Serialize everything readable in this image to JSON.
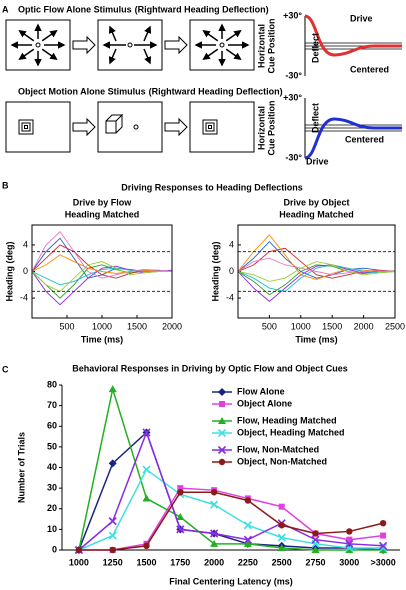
{
  "panels": {
    "a": {
      "label": "A",
      "top_label": "+30°",
      "bottom_label": "-30°",
      "rows": [
        {
          "title": "Optic Flow Alone Stimulus",
          "subtitle": "(Rightward Heading Deflection)",
          "axis_label": [
            "Horizontal",
            "Cue Position"
          ],
          "drive": "Drive",
          "deflect": "Deflect",
          "centered": "Centered"
        },
        {
          "title": "Object Motion Alone Stimulus",
          "subtitle": "(Rightward Heading Deflection)",
          "axis_label": [
            "Horizontal",
            "Cue Position"
          ],
          "drive": "Drive",
          "deflect": "Deflect",
          "centered": "Centered"
        }
      ]
    },
    "b": {
      "label": "B",
      "title": "Driving Responses to Heading Deflections"
    },
    "c": {
      "label": "C"
    }
  },
  "chart_data": [
    {
      "type": "line",
      "title": "Drive by Flow",
      "subtitle": "Heading Matched",
      "x_label": "Time (ms)",
      "y_label": "Heading (deg)",
      "x": [
        0,
        200,
        400,
        600,
        800,
        1000,
        1200,
        1400,
        1600,
        1800,
        2000
      ],
      "xlim": [
        0,
        2000
      ],
      "xticks": [
        500,
        1000,
        1500,
        2000
      ],
      "ylim": [
        -7,
        7
      ],
      "yticks": [
        -4,
        0,
        4
      ],
      "reference_lines": [
        3,
        -3
      ],
      "series": [
        {
          "color": "#1f5fd0",
          "values": [
            0,
            3,
            5,
            2,
            -1,
            -0.5,
            0.5,
            0.3,
            0,
            0.2,
            0
          ]
        },
        {
          "color": "#2ca02c",
          "values": [
            0,
            -2,
            -4,
            -2,
            0.5,
            1,
            0.3,
            -0.2,
            0,
            0.1,
            0
          ]
        },
        {
          "color": "#d62728",
          "values": [
            0,
            2,
            4,
            3,
            1,
            -0.5,
            -1,
            -0.3,
            0.2,
            0,
            0
          ]
        },
        {
          "color": "#8a2be2",
          "values": [
            0,
            -3,
            -5,
            -3,
            -1,
            0.5,
            0.8,
            0.2,
            -0.2,
            0,
            0.2
          ]
        },
        {
          "color": "#ff8c00",
          "values": [
            0,
            1,
            2.5,
            1.5,
            0.5,
            0,
            -0.3,
            0,
            0.2,
            0,
            0
          ]
        },
        {
          "color": "#17becf",
          "values": [
            0,
            -1,
            -2,
            -1.5,
            -0.5,
            0.3,
            0.5,
            0.2,
            0,
            0,
            0
          ]
        },
        {
          "color": "#e377c2",
          "values": [
            0,
            4,
            6,
            3,
            0,
            -1,
            -0.5,
            0,
            0.3,
            0.2,
            0
          ]
        },
        {
          "color": "#9acd32",
          "values": [
            0,
            -2,
            -3,
            -1,
            1,
            1.5,
            0.5,
            -0.5,
            -0.2,
            0,
            0
          ]
        }
      ]
    },
    {
      "type": "line",
      "title": "Drive by Object",
      "subtitle": "Heading Matched",
      "x_label": "Time (ms)",
      "y_label": "Heading (deg)",
      "x": [
        0,
        250,
        500,
        750,
        1000,
        1250,
        1500,
        1750,
        2000,
        2250,
        2500
      ],
      "xlim": [
        0,
        2500
      ],
      "xticks": [
        500,
        1000,
        1500,
        2000,
        2500
      ],
      "ylim": [
        -7,
        7
      ],
      "yticks": [
        -4,
        0,
        4
      ],
      "reference_lines": [
        3,
        -3
      ],
      "series": [
        {
          "color": "#1f5fd0",
          "values": [
            0,
            2,
            4.5,
            2,
            0,
            -1,
            -0.5,
            0.3,
            0.5,
            0.2,
            0
          ]
        },
        {
          "color": "#2ca02c",
          "values": [
            0,
            -1.5,
            -3.5,
            -2,
            0,
            1,
            0.8,
            0,
            -0.3,
            0,
            0.1
          ]
        },
        {
          "color": "#d62728",
          "values": [
            0,
            1,
            3,
            3.5,
            1.5,
            -0.5,
            -1,
            -0.5,
            0,
            0.2,
            0
          ]
        },
        {
          "color": "#8a2be2",
          "values": [
            0,
            -2.5,
            -4.5,
            -2.5,
            -0.5,
            0.8,
            1,
            0.3,
            -0.2,
            0,
            0
          ]
        },
        {
          "color": "#ff8c00",
          "values": [
            0,
            3,
            5.5,
            2.5,
            -0.5,
            -1.2,
            -0.3,
            0.4,
            0.2,
            0,
            0
          ]
        },
        {
          "color": "#17becf",
          "values": [
            0,
            -1,
            -2.5,
            -3,
            -1,
            0.5,
            1,
            0.5,
            0,
            -0.2,
            0
          ]
        },
        {
          "color": "#e377c2",
          "values": [
            0,
            1.5,
            2,
            1,
            0.5,
            0,
            -0.5,
            -0.2,
            0,
            0.1,
            0
          ]
        },
        {
          "color": "#9acd32",
          "values": [
            0,
            -0.5,
            -1.5,
            -1,
            0.5,
            1.5,
            1,
            0,
            -0.5,
            -0.2,
            0
          ]
        }
      ]
    },
    {
      "type": "line",
      "title": "Behavioral Responses in Driving by Optic Flow and Object Cues",
      "x_label": "Final Centering Latency (ms)",
      "y_label": "Number of Trials",
      "categories": [
        "1000",
        "1250",
        "1500",
        "1750",
        "2000",
        "2250",
        "2500",
        "2750",
        "3000",
        ">3000"
      ],
      "ylim": [
        0,
        80
      ],
      "yticks": [
        0,
        10,
        20,
        30,
        40,
        50,
        60,
        70,
        80
      ],
      "legend": "upper right",
      "series": [
        {
          "name": "Flow Alone",
          "color": "#1a237e",
          "marker": "diamond",
          "values": [
            0,
            42,
            57,
            10,
            8,
            3,
            2,
            1,
            1,
            0
          ]
        },
        {
          "name": "Object Alone",
          "color": "#e040e0",
          "marker": "square",
          "values": [
            0,
            0,
            3,
            30,
            29,
            25,
            21,
            8,
            5,
            7
          ]
        },
        {
          "name": "Flow, Heading Matched",
          "color": "#22b022",
          "marker": "triangle",
          "values": [
            0,
            78,
            25,
            16,
            3,
            3,
            1,
            0,
            0,
            0
          ]
        },
        {
          "name": "Object, Heading Matched",
          "color": "#40e0e0",
          "marker": "cross",
          "values": [
            0,
            7,
            39,
            27,
            22,
            12,
            6,
            3,
            1,
            1
          ]
        },
        {
          "name": "Flow, Non-Matched",
          "color": "#8a2be2",
          "marker": "cross",
          "values": [
            0,
            14,
            57,
            10,
            8,
            5,
            13,
            5,
            3,
            2
          ]
        },
        {
          "name": "Object, Non-Matched",
          "color": "#8b1a1a",
          "marker": "circle",
          "values": [
            0,
            0,
            2,
            28,
            28,
            24,
            12,
            8,
            9,
            13
          ]
        }
      ]
    }
  ]
}
